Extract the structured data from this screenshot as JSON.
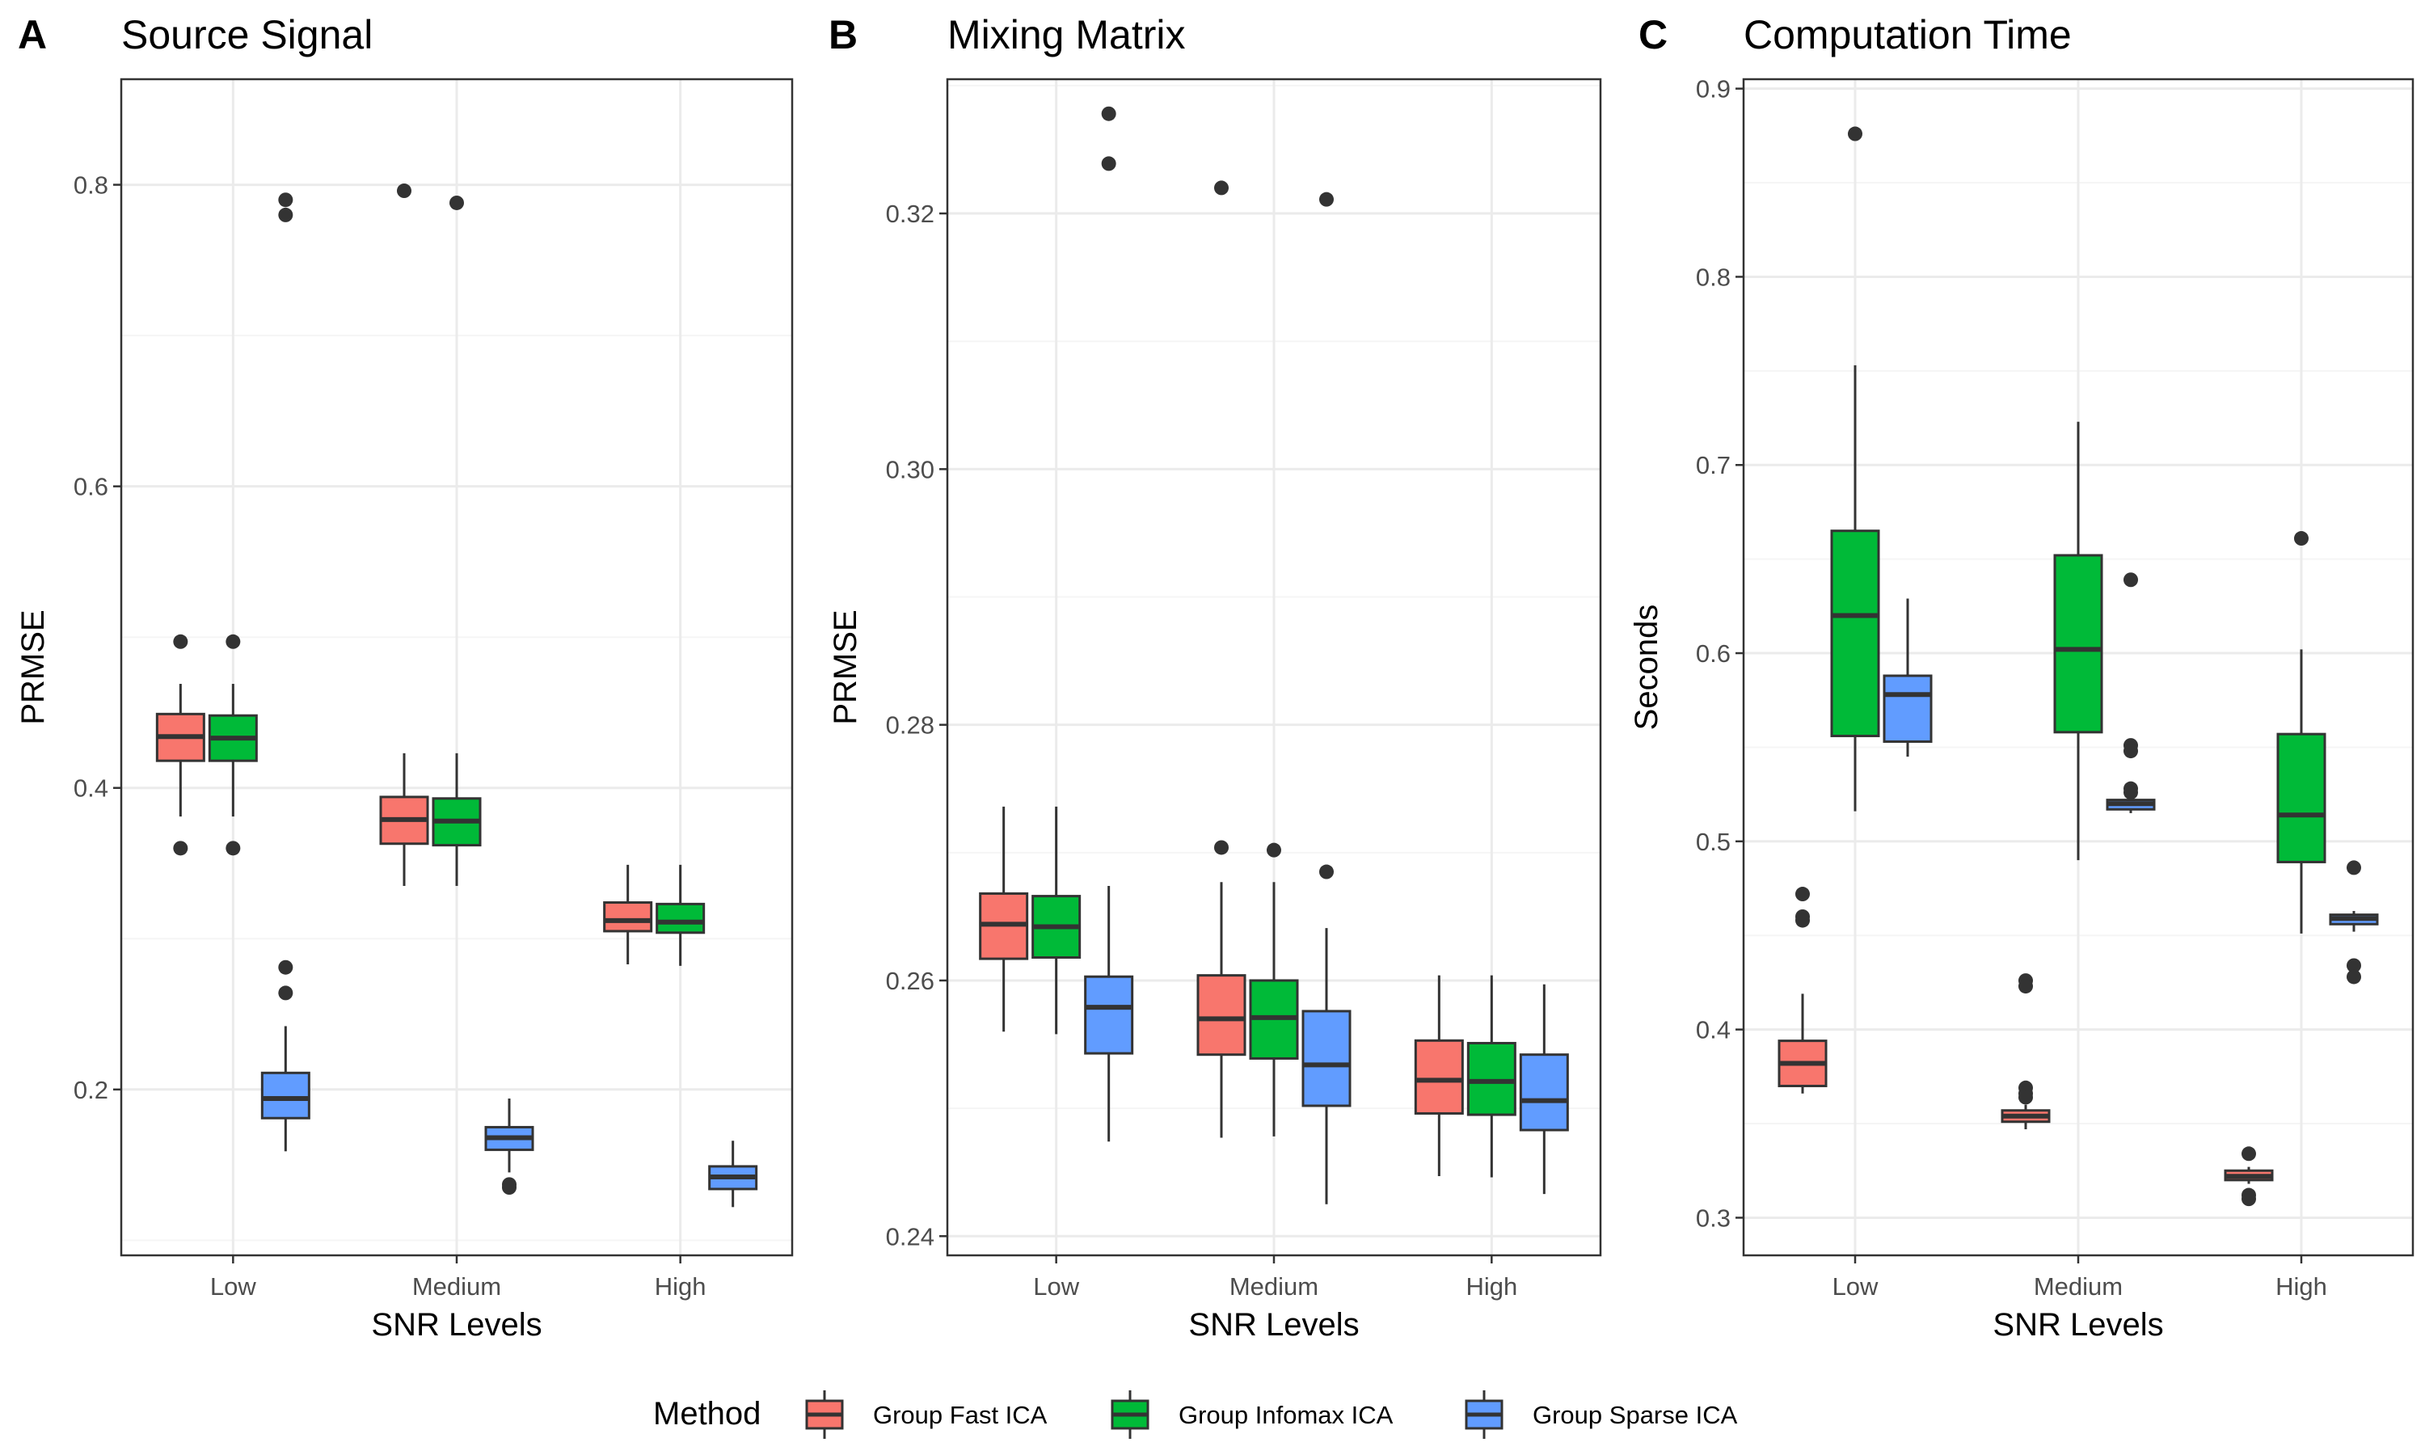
{
  "colors": {
    "Group Fast ICA": "#F8766D",
    "Group Infomax ICA": "#00BA38",
    "Group Sparse ICA": "#619CFF",
    "grid_major": "#ebebeb",
    "grid_minor": "#f5f5f5",
    "box_line": "#333333",
    "panel_border": "#333333"
  },
  "legend": {
    "title": "Method",
    "placement": "bottom",
    "items": [
      "Group Fast ICA",
      "Group Infomax ICA",
      "Group Sparse ICA"
    ]
  },
  "chart_data": [
    {
      "type": "box",
      "tag": "A",
      "title": "Source Signal",
      "xlabel": "SNR Levels",
      "ylabel": "PRMSE",
      "categories": [
        "Low",
        "Medium",
        "High"
      ],
      "ylim": [
        0.09,
        0.87
      ],
      "yticks": [
        0.2,
        0.4,
        0.6,
        0.8
      ],
      "ytick_labels": [
        "0.2",
        "0.4",
        "0.6",
        "0.8"
      ],
      "grid": true,
      "series": [
        {
          "name": "Group Fast ICA",
          "boxes": [
            {
              "category": "Low",
              "lower": 0.381,
              "q1": 0.418,
              "median": 0.434,
              "q3": 0.449,
              "upper": 0.469,
              "outliers": [
                0.497,
                0.36
              ]
            },
            {
              "category": "Medium",
              "lower": 0.335,
              "q1": 0.363,
              "median": 0.379,
              "q3": 0.394,
              "upper": 0.423,
              "outliers": [
                0.796
              ]
            },
            {
              "category": "High",
              "lower": 0.283,
              "q1": 0.305,
              "median": 0.312,
              "q3": 0.324,
              "upper": 0.349,
              "outliers": []
            }
          ]
        },
        {
          "name": "Group Infomax ICA",
          "boxes": [
            {
              "category": "Low",
              "lower": 0.381,
              "q1": 0.418,
              "median": 0.433,
              "q3": 0.448,
              "upper": 0.469,
              "outliers": [
                0.497,
                0.36
              ]
            },
            {
              "category": "Medium",
              "lower": 0.335,
              "q1": 0.362,
              "median": 0.378,
              "q3": 0.393,
              "upper": 0.423,
              "outliers": [
                0.788
              ]
            },
            {
              "category": "High",
              "lower": 0.282,
              "q1": 0.304,
              "median": 0.311,
              "q3": 0.323,
              "upper": 0.349,
              "outliers": []
            }
          ]
        },
        {
          "name": "Group Sparse ICA",
          "boxes": [
            {
              "category": "Low",
              "lower": 0.159,
              "q1": 0.181,
              "median": 0.194,
              "q3": 0.211,
              "upper": 0.242,
              "outliers": [
                0.79,
                0.78,
                0.281,
                0.264
              ]
            },
            {
              "category": "Medium",
              "lower": 0.145,
              "q1": 0.16,
              "median": 0.168,
              "q3": 0.175,
              "upper": 0.194,
              "outliers": [
                0.135,
                0.137
              ]
            },
            {
              "category": "High",
              "lower": 0.122,
              "q1": 0.134,
              "median": 0.142,
              "q3": 0.149,
              "upper": 0.166,
              "outliers": []
            }
          ]
        }
      ]
    },
    {
      "type": "box",
      "tag": "B",
      "title": "Mixing Matrix",
      "xlabel": "SNR Levels",
      "ylabel": "PRMSE",
      "categories": [
        "Low",
        "Medium",
        "High"
      ],
      "ylim": [
        0.2385,
        0.3305
      ],
      "yticks": [
        0.24,
        0.26,
        0.28,
        0.3,
        0.32
      ],
      "ytick_labels": [
        "0.24",
        "0.26",
        "0.28",
        "0.30",
        "0.32"
      ],
      "grid": true,
      "series": [
        {
          "name": "Group Fast ICA",
          "boxes": [
            {
              "category": "Low",
              "lower": 0.256,
              "q1": 0.2617,
              "median": 0.2644,
              "q3": 0.2668,
              "upper": 0.2736,
              "outliers": []
            },
            {
              "category": "Medium",
              "lower": 0.2477,
              "q1": 0.2542,
              "median": 0.257,
              "q3": 0.2604,
              "upper": 0.2677,
              "outliers": [
                0.2704,
                0.322
              ]
            },
            {
              "category": "High",
              "lower": 0.2447,
              "q1": 0.2496,
              "median": 0.2522,
              "q3": 0.2553,
              "upper": 0.2604,
              "outliers": []
            }
          ]
        },
        {
          "name": "Group Infomax ICA",
          "boxes": [
            {
              "category": "Low",
              "lower": 0.2558,
              "q1": 0.2618,
              "median": 0.2642,
              "q3": 0.2666,
              "upper": 0.2736,
              "outliers": []
            },
            {
              "category": "Medium",
              "lower": 0.2478,
              "q1": 0.2539,
              "median": 0.2571,
              "q3": 0.26,
              "upper": 0.2677,
              "outliers": [
                0.2702
              ]
            },
            {
              "category": "High",
              "lower": 0.2446,
              "q1": 0.2495,
              "median": 0.2521,
              "q3": 0.2551,
              "upper": 0.2604,
              "outliers": []
            }
          ]
        },
        {
          "name": "Group Sparse ICA",
          "boxes": [
            {
              "category": "Low",
              "lower": 0.2474,
              "q1": 0.2543,
              "median": 0.2579,
              "q3": 0.2603,
              "upper": 0.2674,
              "outliers": [
                0.3278,
                0.3239
              ]
            },
            {
              "category": "Medium",
              "lower": 0.2425,
              "q1": 0.2502,
              "median": 0.2534,
              "q3": 0.2576,
              "upper": 0.2641,
              "outliers": [
                0.2685,
                0.3211
              ]
            },
            {
              "category": "High",
              "lower": 0.2433,
              "q1": 0.2483,
              "median": 0.2506,
              "q3": 0.2542,
              "upper": 0.2597,
              "outliers": []
            }
          ]
        }
      ]
    },
    {
      "type": "box",
      "tag": "C",
      "title": "Computation Time",
      "xlabel": "SNR Levels",
      "ylabel": "Seconds",
      "categories": [
        "Low",
        "Medium",
        "High"
      ],
      "ylim": [
        0.28,
        0.905
      ],
      "yticks": [
        0.3,
        0.4,
        0.5,
        0.6,
        0.7,
        0.8,
        0.9
      ],
      "ytick_labels": [
        "0.3",
        "0.4",
        "0.5",
        "0.6",
        "0.7",
        "0.8",
        "0.9"
      ],
      "grid": true,
      "series": [
        {
          "name": "Group Fast ICA",
          "boxes": [
            {
              "category": "Low",
              "lower": 0.366,
              "q1": 0.37,
              "median": 0.382,
              "q3": 0.394,
              "upper": 0.419,
              "outliers": [
                0.472,
                0.46,
                0.458
              ]
            },
            {
              "category": "Medium",
              "lower": 0.347,
              "q1": 0.351,
              "median": 0.354,
              "q3": 0.357,
              "upper": 0.36,
              "outliers": [
                0.426,
                0.423,
                0.369,
                0.366,
                0.364
              ]
            },
            {
              "category": "High",
              "lower": 0.318,
              "q1": 0.32,
              "median": 0.322,
              "q3": 0.325,
              "upper": 0.327,
              "outliers": [
                0.334,
                0.312,
                0.31
              ]
            }
          ]
        },
        {
          "name": "Group Infomax ICA",
          "boxes": [
            {
              "category": "Low",
              "lower": 0.516,
              "q1": 0.556,
              "median": 0.62,
              "q3": 0.665,
              "upper": 0.753,
              "outliers": [
                0.876
              ]
            },
            {
              "category": "Medium",
              "lower": 0.49,
              "q1": 0.558,
              "median": 0.602,
              "q3": 0.652,
              "upper": 0.723,
              "outliers": []
            },
            {
              "category": "High",
              "lower": 0.451,
              "q1": 0.489,
              "median": 0.514,
              "q3": 0.557,
              "upper": 0.602,
              "outliers": [
                0.661
              ]
            }
          ]
        },
        {
          "name": "Group Sparse ICA",
          "boxes": [
            {
              "category": "Low",
              "lower": 0.545,
              "q1": 0.553,
              "median": 0.578,
              "q3": 0.588,
              "upper": 0.629,
              "outliers": []
            },
            {
              "category": "Medium",
              "lower": 0.515,
              "q1": 0.517,
              "median": 0.52,
              "q3": 0.522,
              "upper": 0.525,
              "outliers": [
                0.639,
                0.551,
                0.548,
                0.528,
                0.526
              ]
            },
            {
              "category": "High",
              "lower": 0.452,
              "q1": 0.456,
              "median": 0.459,
              "q3": 0.461,
              "upper": 0.463,
              "outliers": [
                0.486,
                0.434,
                0.428
              ]
            }
          ]
        }
      ]
    }
  ]
}
